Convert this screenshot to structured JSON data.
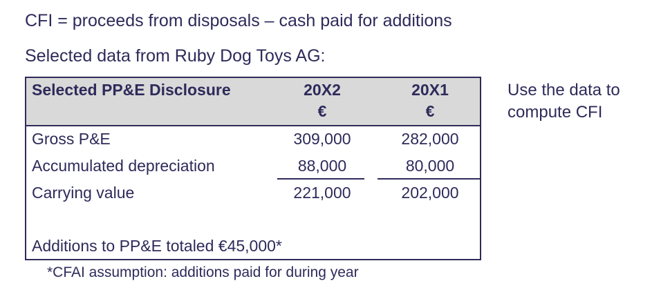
{
  "formula": "CFI = proceeds from disposals – cash paid for additions",
  "intro": "Selected data from Ruby Dog Toys AG:",
  "table": {
    "header": {
      "label": "Selected PP&E Disclosure",
      "col1": "20X2",
      "col2": "20X1",
      "currency": "€"
    },
    "rows": [
      {
        "label": "Gross P&E",
        "v1": "309,000",
        "v2": "282,000"
      },
      {
        "label": "Accumulated depreciation",
        "v1": "88,000",
        "v2": "80,000"
      },
      {
        "label": "Carrying value",
        "v1": "221,000",
        "v2": "202,000"
      }
    ],
    "additions": "Additions to PP&E totaled €45,000*"
  },
  "footnote": "*CFAI assumption: additions paid for during year",
  "side_note": {
    "line1": "Use the data to",
    "line2": "compute CFI"
  }
}
